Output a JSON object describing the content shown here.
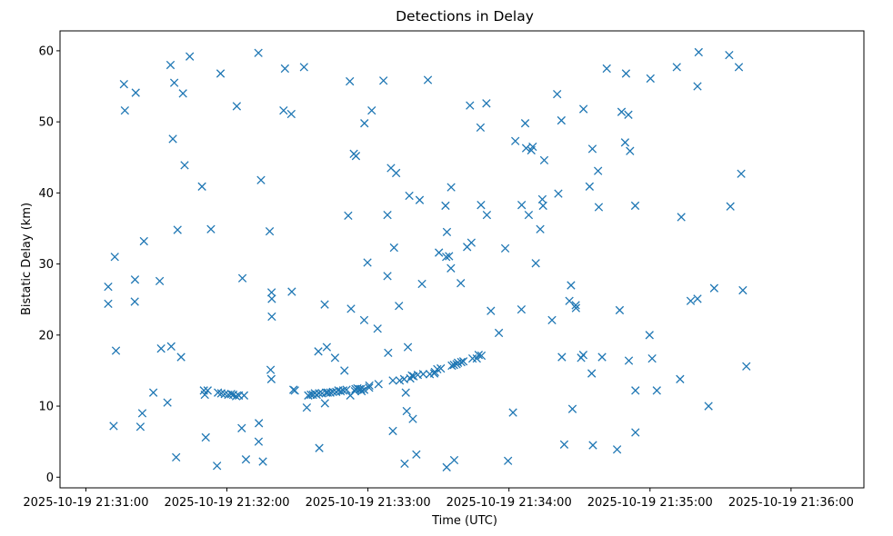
{
  "chart_data": {
    "type": "scatter",
    "title": "Detections in Delay",
    "xlabel": "Time (UTC)",
    "ylabel": "Bistatic Delay (km)",
    "x_unit": "seconds since 2025-10-19 21:31:00",
    "xlim": [
      -11,
      331
    ],
    "ylim": [
      -1.5,
      62.8
    ],
    "x_ticks": [
      {
        "value": 0,
        "label": "2025-10-19 21:31:00"
      },
      {
        "value": 60,
        "label": "2025-10-19 21:32:00"
      },
      {
        "value": 120,
        "label": "2025-10-19 21:33:00"
      },
      {
        "value": 180,
        "label": "2025-10-19 21:34:00"
      },
      {
        "value": 240,
        "label": "2025-10-19 21:35:00"
      },
      {
        "value": 300,
        "label": "2025-10-19 21:36:00"
      }
    ],
    "y_ticks": [
      {
        "value": 0,
        "label": "0"
      },
      {
        "value": 10,
        "label": "10"
      },
      {
        "value": 20,
        "label": "20"
      },
      {
        "value": 30,
        "label": "30"
      },
      {
        "value": 40,
        "label": "40"
      },
      {
        "value": 50,
        "label": "50"
      },
      {
        "value": 60,
        "label": "60"
      }
    ],
    "marker": "x",
    "color": "#1f77b4",
    "series": [
      {
        "name": "Detections",
        "points": [
          [
            9.5,
            26.8
          ],
          [
            9.5,
            24.4
          ],
          [
            12.3,
            31.0
          ],
          [
            11.8,
            7.2
          ],
          [
            12.8,
            17.8
          ],
          [
            16.2,
            55.3
          ],
          [
            16.6,
            51.6
          ],
          [
            21.2,
            54.1
          ],
          [
            20.9,
            27.8
          ],
          [
            20.8,
            24.7
          ],
          [
            23.2,
            7.1
          ],
          [
            24.0,
            9.0
          ],
          [
            24.7,
            33.2
          ],
          [
            28.7,
            11.9
          ],
          [
            31.4,
            27.6
          ],
          [
            32.0,
            18.1
          ],
          [
            34.7,
            10.5
          ],
          [
            36.0,
            58.0
          ],
          [
            36.3,
            18.4
          ],
          [
            37.0,
            47.6
          ],
          [
            37.6,
            55.5
          ],
          [
            38.4,
            2.8
          ],
          [
            39.0,
            34.8
          ],
          [
            40.5,
            16.9
          ],
          [
            41.3,
            54.0
          ],
          [
            42.0,
            43.9
          ],
          [
            44.2,
            59.2
          ],
          [
            49.4,
            40.9
          ],
          [
            50.2,
            12.2
          ],
          [
            50.6,
            11.6
          ],
          [
            51.0,
            5.6
          ],
          [
            51.8,
            12.2
          ],
          [
            53.2,
            34.9
          ],
          [
            55.8,
            1.6
          ],
          [
            56.2,
            11.9
          ],
          [
            57.3,
            56.8
          ],
          [
            57.6,
            11.8
          ],
          [
            59.1,
            11.7
          ],
          [
            60.6,
            11.6
          ],
          [
            61.8,
            11.7
          ],
          [
            62.7,
            11.6
          ],
          [
            63.9,
            11.4
          ],
          [
            64.2,
            52.2
          ],
          [
            65.1,
            11.5
          ],
          [
            66.6,
            28.0
          ],
          [
            66.3,
            6.9
          ],
          [
            67.3,
            11.5
          ],
          [
            68.1,
            2.5
          ],
          [
            73.4,
            59.7
          ],
          [
            73.5,
            5.0
          ],
          [
            73.6,
            7.6
          ],
          [
            74.5,
            41.8
          ],
          [
            75.3,
            2.2
          ],
          [
            78.2,
            34.6
          ],
          [
            78.6,
            15.1
          ],
          [
            78.9,
            13.8
          ],
          [
            79.0,
            26.0
          ],
          [
            79.1,
            25.1
          ],
          [
            79.1,
            22.6
          ],
          [
            84.1,
            51.6
          ],
          [
            84.7,
            57.5
          ],
          [
            87.4,
            51.1
          ],
          [
            87.6,
            26.1
          ],
          [
            88.3,
            12.3
          ],
          [
            88.9,
            12.2
          ],
          [
            92.8,
            57.7
          ],
          [
            94.0,
            9.8
          ],
          [
            94.6,
            11.5
          ],
          [
            95.7,
            11.6
          ],
          [
            96.6,
            11.6
          ],
          [
            97.4,
            11.8
          ],
          [
            98.2,
            11.6
          ],
          [
            98.9,
            17.7
          ],
          [
            99.3,
            4.1
          ],
          [
            99.2,
            11.8
          ],
          [
            100.5,
            11.8
          ],
          [
            101.6,
            24.3
          ],
          [
            101.7,
            10.4
          ],
          [
            102.2,
            11.9
          ],
          [
            102.5,
            18.3
          ],
          [
            102.9,
            11.9
          ],
          [
            104.0,
            11.9
          ],
          [
            105.1,
            12.0
          ],
          [
            106.0,
            16.8
          ],
          [
            106.5,
            12.0
          ],
          [
            107.4,
            12.2
          ],
          [
            108.4,
            12.1
          ],
          [
            109.5,
            12.2
          ],
          [
            110.0,
            15.0
          ],
          [
            110.9,
            12.3
          ],
          [
            111.6,
            36.8
          ],
          [
            112.3,
            55.7
          ],
          [
            112.5,
            11.5
          ],
          [
            112.8,
            23.7
          ],
          [
            114.0,
            45.5
          ],
          [
            114.5,
            12.1
          ],
          [
            114.7,
            12.4
          ],
          [
            114.9,
            45.2
          ],
          [
            115.5,
            12.5
          ],
          [
            116.4,
            12.4
          ],
          [
            117.1,
            12.4
          ],
          [
            117.3,
            12.1
          ],
          [
            118.4,
            12.3
          ],
          [
            118.4,
            22.1
          ],
          [
            118.5,
            49.8
          ],
          [
            119.8,
            30.2
          ],
          [
            120.5,
            12.6
          ],
          [
            120.6,
            12.9
          ],
          [
            121.6,
            51.6
          ],
          [
            124.1,
            20.9
          ],
          [
            124.5,
            13.1
          ],
          [
            126.6,
            55.8
          ],
          [
            128.6,
            17.5
          ],
          [
            128.3,
            36.9
          ],
          [
            128.3,
            28.3
          ],
          [
            129.8,
            43.5
          ],
          [
            130.6,
            13.6
          ],
          [
            130.6,
            6.5
          ],
          [
            131.1,
            32.3
          ],
          [
            132.0,
            42.8
          ],
          [
            133.2,
            24.1
          ],
          [
            133.5,
            13.6
          ],
          [
            135.4,
            13.8
          ],
          [
            135.6,
            1.9
          ],
          [
            136.1,
            11.9
          ],
          [
            136.5,
            9.3
          ],
          [
            137.0,
            18.3
          ],
          [
            137.6,
            39.6
          ],
          [
            138.0,
            13.9
          ],
          [
            138.7,
            14.3
          ],
          [
            139.1,
            8.2
          ],
          [
            139.4,
            14.2
          ],
          [
            140.6,
            3.2
          ],
          [
            141.2,
            14.4
          ],
          [
            142.0,
            39.0
          ],
          [
            143.0,
            27.2
          ],
          [
            143.5,
            14.5
          ],
          [
            145.5,
            55.9
          ],
          [
            146.3,
            14.5
          ],
          [
            148.2,
            14.6
          ],
          [
            148.5,
            14.8
          ],
          [
            149.5,
            15.2
          ],
          [
            150.2,
            31.6
          ],
          [
            151.0,
            15.3
          ],
          [
            153.0,
            38.2
          ],
          [
            153.3,
            31.0
          ],
          [
            153.5,
            1.4
          ],
          [
            153.6,
            34.5
          ],
          [
            154.5,
            31.1
          ],
          [
            155.3,
            29.4
          ],
          [
            155.4,
            40.8
          ],
          [
            155.7,
            15.7
          ],
          [
            156.6,
            15.8
          ],
          [
            156.7,
            2.4
          ],
          [
            157.7,
            15.9
          ],
          [
            158.3,
            16.1
          ],
          [
            159.5,
            27.3
          ],
          [
            159.7,
            16.2
          ],
          [
            160.6,
            16.3
          ],
          [
            162.2,
            32.4
          ],
          [
            163.4,
            52.3
          ],
          [
            164.0,
            33.0
          ],
          [
            164.5,
            16.7
          ],
          [
            166.3,
            16.7
          ],
          [
            167.1,
            17.2
          ],
          [
            167.9,
            49.2
          ],
          [
            168.1,
            38.3
          ],
          [
            168.3,
            17.1
          ],
          [
            170.4,
            52.6
          ],
          [
            170.6,
            36.9
          ],
          [
            172.3,
            23.4
          ],
          [
            175.7,
            20.3
          ],
          [
            178.4,
            32.2
          ],
          [
            179.6,
            2.3
          ],
          [
            181.7,
            9.1
          ],
          [
            182.7,
            47.3
          ],
          [
            185.4,
            38.3
          ],
          [
            185.3,
            23.6
          ],
          [
            186.9,
            49.8
          ],
          [
            187.3,
            46.3
          ],
          [
            188.4,
            36.9
          ],
          [
            189.5,
            46.0
          ],
          [
            190.1,
            46.5
          ],
          [
            191.4,
            30.1
          ],
          [
            193.3,
            34.9
          ],
          [
            194.2,
            39.1
          ],
          [
            194.5,
            38.2
          ],
          [
            195.0,
            44.6
          ],
          [
            198.3,
            22.1
          ],
          [
            200.5,
            53.9
          ],
          [
            201.0,
            39.9
          ],
          [
            202.5,
            16.9
          ],
          [
            202.3,
            50.2
          ],
          [
            203.5,
            4.6
          ],
          [
            205.7,
            24.8
          ],
          [
            206.4,
            27.0
          ],
          [
            207.0,
            9.6
          ],
          [
            208.4,
            24.2
          ],
          [
            208.5,
            23.8
          ],
          [
            210.7,
            16.8
          ],
          [
            211.6,
            17.2
          ],
          [
            211.7,
            51.8
          ],
          [
            214.3,
            40.9
          ],
          [
            215.2,
            14.6
          ],
          [
            215.5,
            46.2
          ],
          [
            215.7,
            4.5
          ],
          [
            217.9,
            43.1
          ],
          [
            218.2,
            38.0
          ],
          [
            219.6,
            16.9
          ],
          [
            221.6,
            57.5
          ],
          [
            226.0,
            3.9
          ],
          [
            227.1,
            23.5
          ],
          [
            227.9,
            51.4
          ],
          [
            229.4,
            47.1
          ],
          [
            229.8,
            56.8
          ],
          [
            230.8,
            51.0
          ],
          [
            231.0,
            16.4
          ],
          [
            231.5,
            45.9
          ],
          [
            233.7,
            38.2
          ],
          [
            233.8,
            6.3
          ],
          [
            233.8,
            12.2
          ],
          [
            239.8,
            20.0
          ],
          [
            240.2,
            56.1
          ],
          [
            240.9,
            16.7
          ],
          [
            242.9,
            12.2
          ],
          [
            251.4,
            57.7
          ],
          [
            252.8,
            13.8
          ],
          [
            253.3,
            36.6
          ],
          [
            257.3,
            24.8
          ],
          [
            260.2,
            25.1
          ],
          [
            260.2,
            55.0
          ],
          [
            260.7,
            59.8
          ],
          [
            264.9,
            10.0
          ],
          [
            267.3,
            26.6
          ],
          [
            273.7,
            59.4
          ],
          [
            274.2,
            38.1
          ],
          [
            277.8,
            57.7
          ],
          [
            278.8,
            42.7
          ],
          [
            279.5,
            26.3
          ],
          [
            281.0,
            15.6
          ]
        ]
      }
    ]
  }
}
